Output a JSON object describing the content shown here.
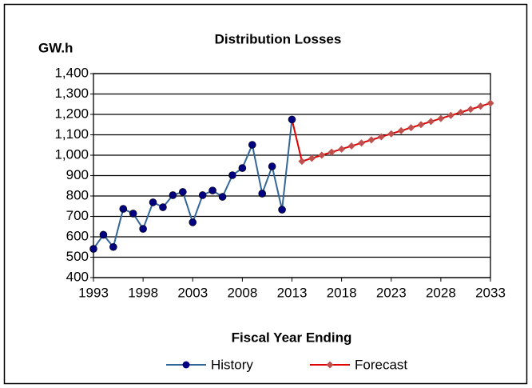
{
  "chart_data": {
    "type": "line",
    "title": "Distribution Losses",
    "y_label": "GW.h",
    "x_label": "Fiscal Year Ending",
    "x": [
      1993,
      1994,
      1995,
      1996,
      1997,
      1998,
      1999,
      2000,
      2001,
      2002,
      2003,
      2004,
      2005,
      2006,
      2007,
      2008,
      2009,
      2010,
      2011,
      2012,
      2013,
      2014,
      2015,
      2016,
      2017,
      2018,
      2019,
      2020,
      2021,
      2022,
      2023,
      2024,
      2025,
      2026,
      2027,
      2028,
      2029,
      2030,
      2031,
      2032,
      2033
    ],
    "series": [
      {
        "name": "History",
        "color": "#336699",
        "marker_color": "#000080",
        "marker": "circle",
        "values": [
          541,
          610,
          550,
          737,
          714,
          639,
          769,
          745,
          804,
          820,
          671,
          804,
          827,
          796,
          902,
          937,
          1051,
          812,
          945,
          733,
          1175,
          null,
          null,
          null,
          null,
          null,
          null,
          null,
          null,
          null,
          null,
          null,
          null,
          null,
          null,
          null,
          null,
          null,
          null,
          null,
          null
        ]
      },
      {
        "name": "Forecast",
        "color": "#e00000",
        "marker_color": "#c0504d",
        "marker": "diamond",
        "values": [
          null,
          null,
          null,
          null,
          null,
          null,
          null,
          null,
          null,
          null,
          null,
          null,
          null,
          null,
          null,
          null,
          null,
          null,
          null,
          null,
          1175,
          970,
          985,
          1000,
          1015,
          1030,
          1045,
          1060,
          1075,
          1090,
          1105,
          1120,
          1135,
          1150,
          1165,
          1180,
          1195,
          1210,
          1225,
          1240,
          1255
        ]
      }
    ],
    "xlim": [
      1993,
      2033
    ],
    "xticks": [
      1993,
      1998,
      2003,
      2008,
      2013,
      2018,
      2023,
      2028,
      2033
    ],
    "ylim": [
      400,
      1400
    ],
    "yticks": [
      400,
      500,
      600,
      700,
      800,
      900,
      {
        "value": 1000,
        "label": "1,000"
      },
      {
        "value": 1100,
        "label": "1,100"
      },
      {
        "value": 1200,
        "label": "1,200"
      },
      {
        "value": 1300,
        "label": "1,300"
      },
      {
        "value": 1400,
        "label": "1,400"
      }
    ],
    "grid": true,
    "legend": "bottom"
  }
}
